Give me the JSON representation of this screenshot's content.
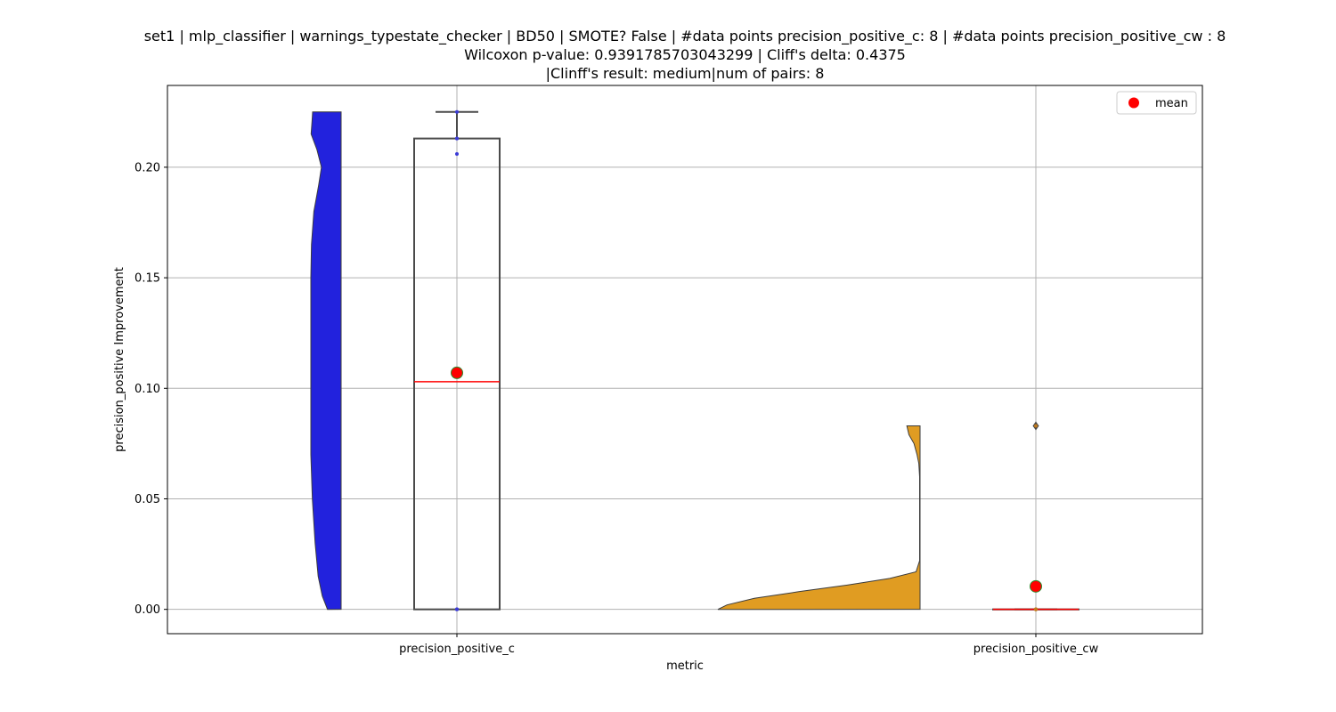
{
  "chart_data": {
    "type": "violin-box",
    "title_lines": [
      "set1 | mlp_classifier | warnings_typestate_checker | BD50 | SMOTE? False | #data points precision_positive_c: 8 | #data points precision_positive_cw : 8",
      "Wilcoxon p-value: 0.9391785703043299 | Cliff's delta: 0.4375",
      "|Clinff's result: medium|num of pairs: 8"
    ],
    "xlabel": "metric",
    "ylabel": "precision_positive Improvement",
    "categories": [
      "precision_positive_c",
      "precision_positive_cw"
    ],
    "ylim": [
      -0.011,
      0.237
    ],
    "yticks": [
      0.0,
      0.05,
      0.1,
      0.15,
      0.2
    ],
    "ytick_labels": [
      "0.00",
      "0.05",
      "0.10",
      "0.15",
      "0.20"
    ],
    "grid": true,
    "legend": {
      "position": "top-right",
      "label": "mean",
      "marker_color": "#ff0000"
    },
    "colors": {
      "violin_c": "#2222dd",
      "violin_cw": "#e09c22",
      "median": "#ff0000",
      "mean_fill": "#ff0000",
      "mean_edge": "#2e8b2e",
      "box_edge": "#4a4a4a",
      "grid": "#b0b0b0"
    },
    "series": [
      {
        "category": "precision_positive_c",
        "points": [
          0.0,
          0.0,
          0.0,
          0.0,
          0.206,
          0.213,
          0.213,
          0.225
        ],
        "box": {
          "whisker_low": 0.0,
          "q1": 0.0,
          "median": 0.103,
          "q3": 0.213,
          "whisker_high": 0.225
        },
        "mean": 0.107,
        "density": [
          [
            0.0,
            0.45
          ],
          [
            0.006,
            0.62
          ],
          [
            0.015,
            0.76
          ],
          [
            0.03,
            0.86
          ],
          [
            0.05,
            0.95
          ],
          [
            0.07,
            1.0
          ],
          [
            0.09,
            1.0
          ],
          [
            0.12,
            1.0
          ],
          [
            0.15,
            1.0
          ],
          [
            0.165,
            0.98
          ],
          [
            0.18,
            0.9
          ],
          [
            0.192,
            0.74
          ],
          [
            0.2,
            0.65
          ],
          [
            0.208,
            0.8
          ],
          [
            0.215,
            0.99
          ],
          [
            0.221,
            0.96
          ],
          [
            0.225,
            0.94
          ]
        ]
      },
      {
        "category": "precision_positive_cw",
        "points": [
          0.0,
          0.0,
          0.0,
          0.0,
          0.0,
          0.0,
          0.0,
          0.083
        ],
        "box": {
          "whisker_low": 0.0,
          "q1": 0.0,
          "median": 0.0,
          "q3": 0.0,
          "whisker_high": 0.0
        },
        "outliers": [
          0.083
        ],
        "mean": 0.0104,
        "density": [
          [
            0.0,
            1.0
          ],
          [
            0.002,
            0.955
          ],
          [
            0.005,
            0.82
          ],
          [
            0.008,
            0.6
          ],
          [
            0.011,
            0.36
          ],
          [
            0.014,
            0.15
          ],
          [
            0.017,
            0.02
          ],
          [
            0.022,
            0.002
          ],
          [
            0.06,
            0.002
          ],
          [
            0.066,
            0.006
          ],
          [
            0.07,
            0.015
          ],
          [
            0.075,
            0.03
          ],
          [
            0.079,
            0.055
          ],
          [
            0.083,
            0.065
          ]
        ]
      }
    ]
  }
}
